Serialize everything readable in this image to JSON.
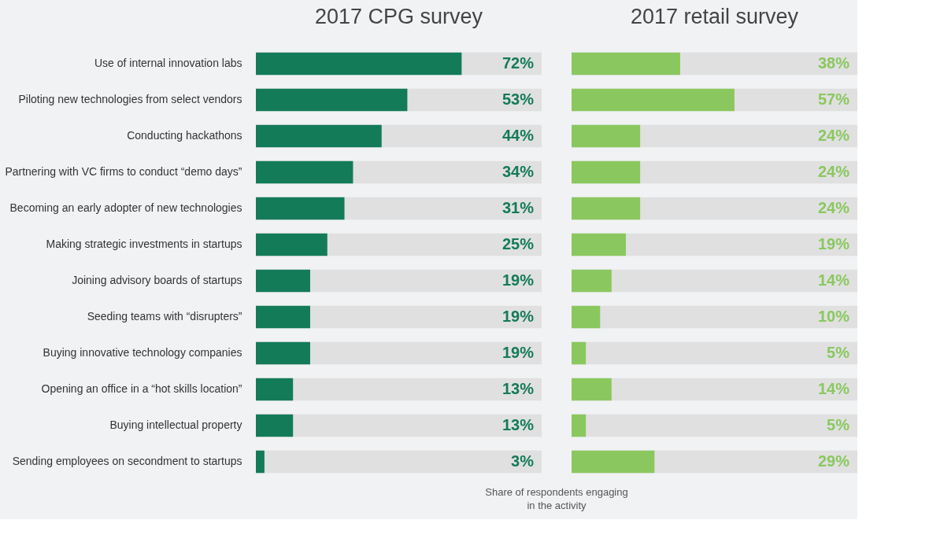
{
  "chart_data": [
    {
      "type": "bar",
      "orientation": "horizontal",
      "title": "2017 CPG survey",
      "xlabel": "Share of respondents engaging in the activity",
      "categories": [
        "Use of internal innovation labs",
        "Piloting new technologies from select vendors",
        "Conducting hackathons",
        "Partnering with VC firms to conduct “demo days”",
        "Becoming an early adopter of new technologies",
        "Making strategic investments in startups",
        "Joining advisory boards of startups",
        "Seeding teams with “disrupters”",
        "Buying innovative technology companies",
        "Opening an office in a “hot skills location”",
        "Buying intellectual property",
        "Sending employees on secondment to startups"
      ],
      "values": [
        72,
        53,
        44,
        34,
        31,
        25,
        19,
        19,
        19,
        13,
        13,
        3
      ],
      "value_labels": [
        "72%",
        "53%",
        "44%",
        "34%",
        "31%",
        "25%",
        "19%",
        "19%",
        "19%",
        "13%",
        "13%",
        "3%"
      ],
      "color": "#147b58",
      "xlim": [
        0,
        100
      ],
      "tick_labels": "y",
      "grid": false,
      "legend": false
    },
    {
      "type": "bar",
      "orientation": "horizontal",
      "title": "2017 retail survey",
      "categories": [
        null,
        null,
        null,
        null,
        null,
        null,
        null,
        null,
        null,
        null,
        null,
        null
      ],
      "values": [
        38,
        57,
        24,
        24,
        24,
        19,
        14,
        10,
        5,
        14,
        5,
        29
      ],
      "value_labels": [
        "38%",
        "57%",
        "24%",
        "24%",
        "24%",
        "19%",
        "14%",
        "10%",
        "5%",
        "14%",
        "5%",
        "29%"
      ],
      "color": "#8ac85f",
      "xlim": [
        0,
        100
      ],
      "tick_labels": false,
      "grid": false,
      "legend": false
    }
  ]
}
